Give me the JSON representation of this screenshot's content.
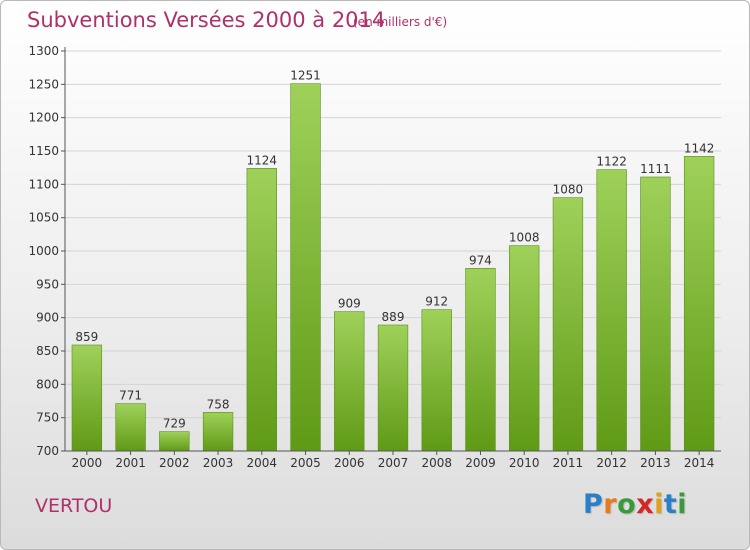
{
  "title": "Subventions Versées 2000 à 2014",
  "subtitle": "(en milliers d'€)",
  "commune": "VERTOU",
  "logo": {
    "letters": [
      "P",
      "r",
      "o",
      "x",
      "i",
      "t",
      "i"
    ],
    "colors": [
      "#2a7fc6",
      "#e8791d",
      "#3a9a3a",
      "#d42626",
      "#e0a21a",
      "#2a7fc6",
      "#3a9a3a"
    ]
  },
  "colors": {
    "bar_top": "#9fd15a",
    "bar_bottom": "#5f9a16",
    "text": "#b0306a"
  },
  "chart_data": {
    "type": "bar",
    "categories": [
      "2000",
      "2001",
      "2002",
      "2003",
      "2004",
      "2005",
      "2006",
      "2007",
      "2008",
      "2009",
      "2010",
      "2011",
      "2012",
      "2013",
      "2014"
    ],
    "values": [
      859,
      771,
      729,
      758,
      1124,
      1251,
      909,
      889,
      912,
      974,
      1008,
      1080,
      1122,
      1111,
      1142
    ],
    "ylim": [
      700,
      1300
    ],
    "yticks": [
      700,
      750,
      800,
      850,
      900,
      950,
      1000,
      1050,
      1100,
      1150,
      1200,
      1250,
      1300
    ],
    "grid": true,
    "data_labels": true
  }
}
